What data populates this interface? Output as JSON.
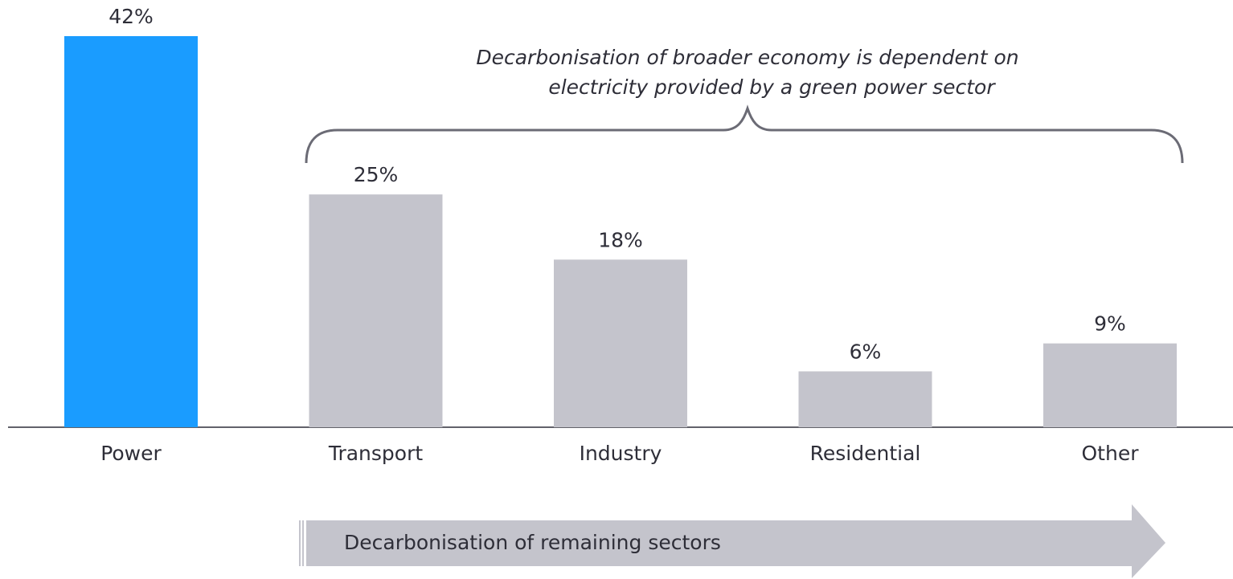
{
  "chart_data": {
    "type": "bar",
    "categories": [
      "Power",
      "Transport",
      "Industry",
      "Residential",
      "Other"
    ],
    "values": [
      42,
      25,
      18,
      6,
      9
    ],
    "value_labels": [
      "42%",
      "25%",
      "18%",
      "6%",
      "9%"
    ],
    "colors": [
      "#1a9cff",
      "#c4c4cc",
      "#c4c4cc",
      "#c4c4cc",
      "#c4c4cc"
    ],
    "annotation": [
      "Decarbonisation of broader economy is dependent on",
      "electricity provided by a green power sector"
    ],
    "arrow_label": "Decarbonisation of remaining sectors"
  }
}
